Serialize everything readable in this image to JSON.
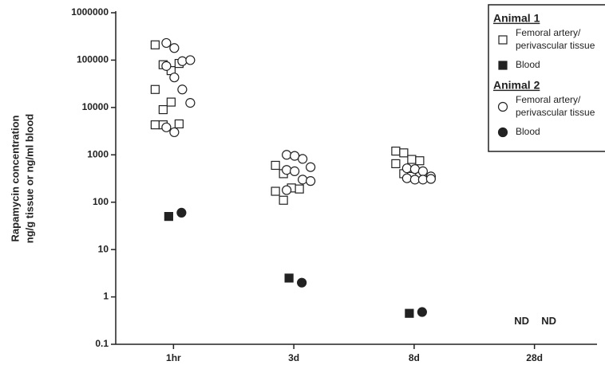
{
  "chart_data": {
    "type": "scatter",
    "y_label": [
      "Rapamycin concentration",
      "ng/g tissue or ng/ml blood"
    ],
    "categories": [
      "1hr",
      "3d",
      "8d",
      "28d"
    ],
    "log_scale": true,
    "ylim": [
      0.1,
      1000000
    ],
    "yticks": [
      0.1,
      1,
      10,
      100,
      1000,
      10000,
      100000,
      1000000
    ],
    "groups": [
      {
        "name": "Animal 1",
        "series": [
          {
            "name": "Femoral artery/perivascular tissue",
            "marker": "square",
            "filled": false,
            "color": "#222222",
            "values": [
              [
                210000,
                80000,
                60000,
                85000,
                24000,
                9000,
                13000,
                4500,
                4300,
                4300
              ],
              [
                600,
                400,
                200,
                190,
                170,
                110
              ],
              [
                1200,
                1100,
                800,
                750,
                650,
                400,
                350
              ],
              []
            ]
          },
          {
            "name": "Blood",
            "marker": "square",
            "filled": true,
            "color": "#222222",
            "values": [
              [
                50
              ],
              [
                2.5
              ],
              [
                0.45
              ],
              []
            ]
          }
        ]
      },
      {
        "name": "Animal 2",
        "series": [
          {
            "name": "Femoral artery/perivascular tissue",
            "marker": "circle",
            "filled": false,
            "color": "#222222",
            "values": [
              [
                230000,
                180000,
                95000,
                100000,
                75000,
                43000,
                24000,
                12500,
                3800,
                3000
              ],
              [
                1000,
                950,
                820,
                550,
                480,
                450,
                300,
                280,
                180
              ],
              [
                520,
                500,
                450,
                350,
                320,
                300,
                300,
                310
              ],
              []
            ]
          },
          {
            "name": "Blood",
            "marker": "circle",
            "filled": true,
            "color": "#222222",
            "values": [
              [
                60
              ],
              [
                2
              ],
              [
                0.48
              ],
              []
            ]
          }
        ]
      }
    ],
    "annotations": [
      "ND",
      "ND"
    ]
  }
}
